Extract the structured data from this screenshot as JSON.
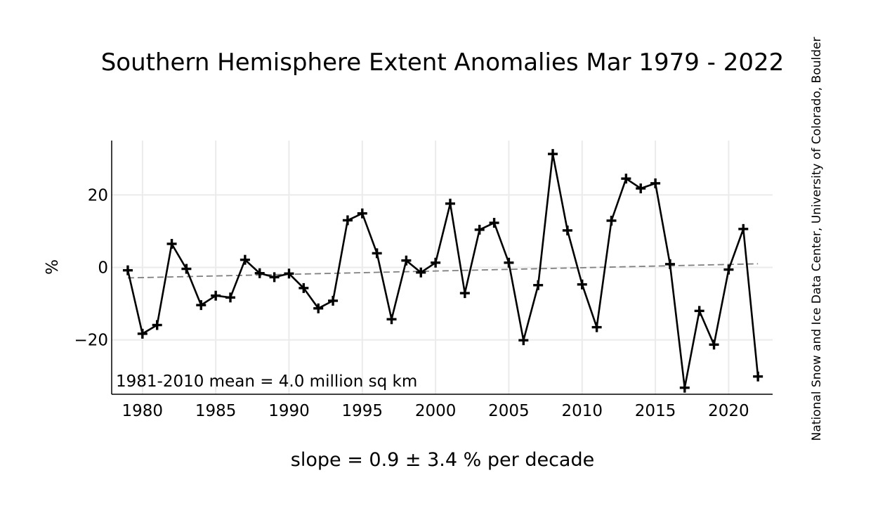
{
  "chart_data": {
    "type": "line",
    "title": "Southern Hemisphere Extent Anomalies Mar 1979 - 2022",
    "xlabel": "slope = 0.9 ± 3.4 % per decade",
    "ylabel": "%",
    "annotation": "1981-2010 mean = 4.0 million sq km",
    "credit": "National Snow and Ice Data Center, University of Colorado, Boulder",
    "xlim": [
      1977.9,
      2023
    ],
    "ylim": [
      -35,
      35
    ],
    "xticks": [
      1980,
      1985,
      1990,
      1995,
      2000,
      2005,
      2010,
      2015,
      2020
    ],
    "yticks": [
      20,
      0,
      -20
    ],
    "ytick_labels": [
      "20",
      "0",
      "−20"
    ],
    "grid": true,
    "series": [
      {
        "marker": "plus",
        "color": "#000000",
        "x": [
          1979,
          1980,
          1981,
          1982,
          1983,
          1984,
          1985,
          1986,
          1987,
          1988,
          1989,
          1990,
          1991,
          1992,
          1993,
          1994,
          1995,
          1996,
          1997,
          1998,
          1999,
          2000,
          2001,
          2002,
          2003,
          2004,
          2005,
          2006,
          2007,
          2008,
          2009,
          2010,
          2011,
          2012,
          2013,
          2014,
          2015,
          2016,
          2017,
          2018,
          2019,
          2020,
          2021,
          2022
        ],
        "y": [
          -0.8,
          -18.3,
          -15.9,
          6.5,
          -0.4,
          -10.4,
          -7.8,
          -8.3,
          2.1,
          -1.6,
          -2.7,
          -1.7,
          -5.7,
          -11.3,
          -9.2,
          13,
          14.9,
          3.9,
          -14.3,
          1.9,
          -1.4,
          1.3,
          17.6,
          -7.1,
          10.4,
          12.3,
          1.3,
          -20.1,
          -4.9,
          31.3,
          10.2,
          -4.7,
          -16.5,
          12.9,
          24.5,
          21.8,
          23.2,
          0.9,
          -33.2,
          -12,
          -21.3,
          -0.6,
          10.6,
          -30.1
        ]
      },
      {
        "type": "trend",
        "style": "dashed",
        "color": "#808080",
        "x": [
          1979,
          2022
        ],
        "y": [
          -2.9,
          1.0
        ]
      }
    ]
  }
}
